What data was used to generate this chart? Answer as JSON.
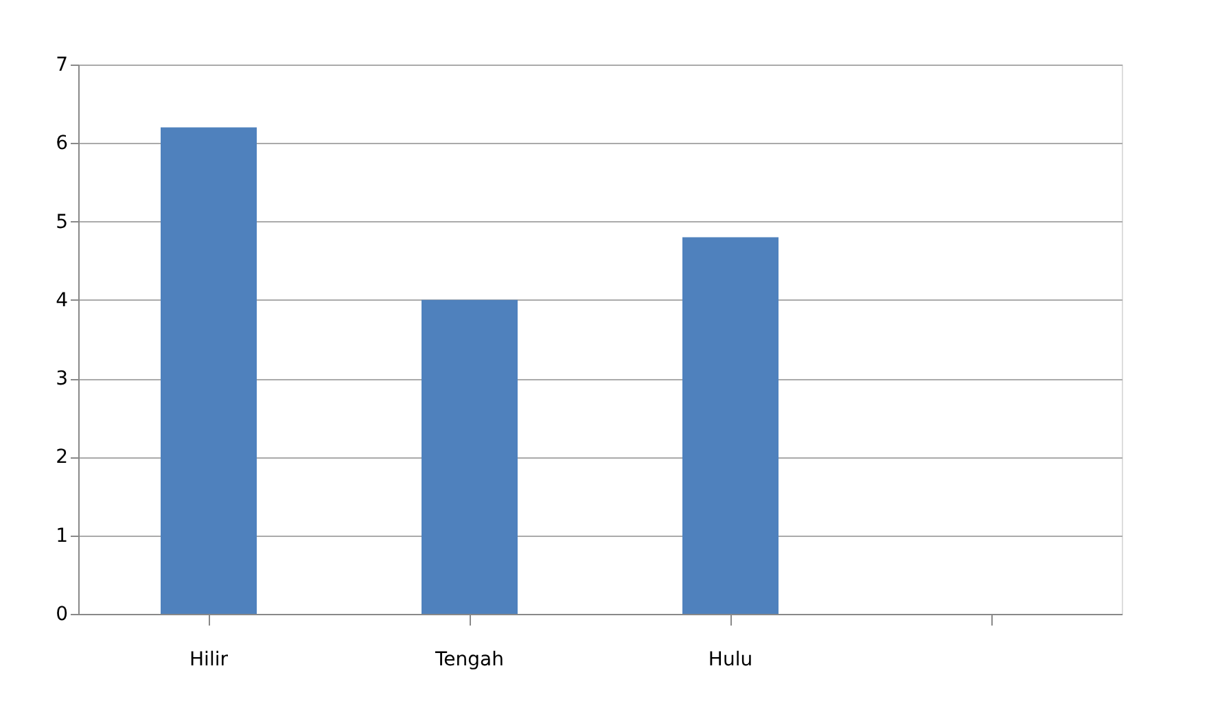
{
  "chart_data": {
    "type": "bar",
    "categories": [
      "Hilir",
      "Tengah",
      "Hulu",
      null
    ],
    "values": [
      6.2,
      4.0,
      4.8,
      null
    ],
    "color": "#4f81bd",
    "ylim": [
      0,
      7
    ],
    "yticks": [
      0,
      1,
      2,
      3,
      4,
      5,
      6,
      7
    ],
    "grid": "y"
  }
}
